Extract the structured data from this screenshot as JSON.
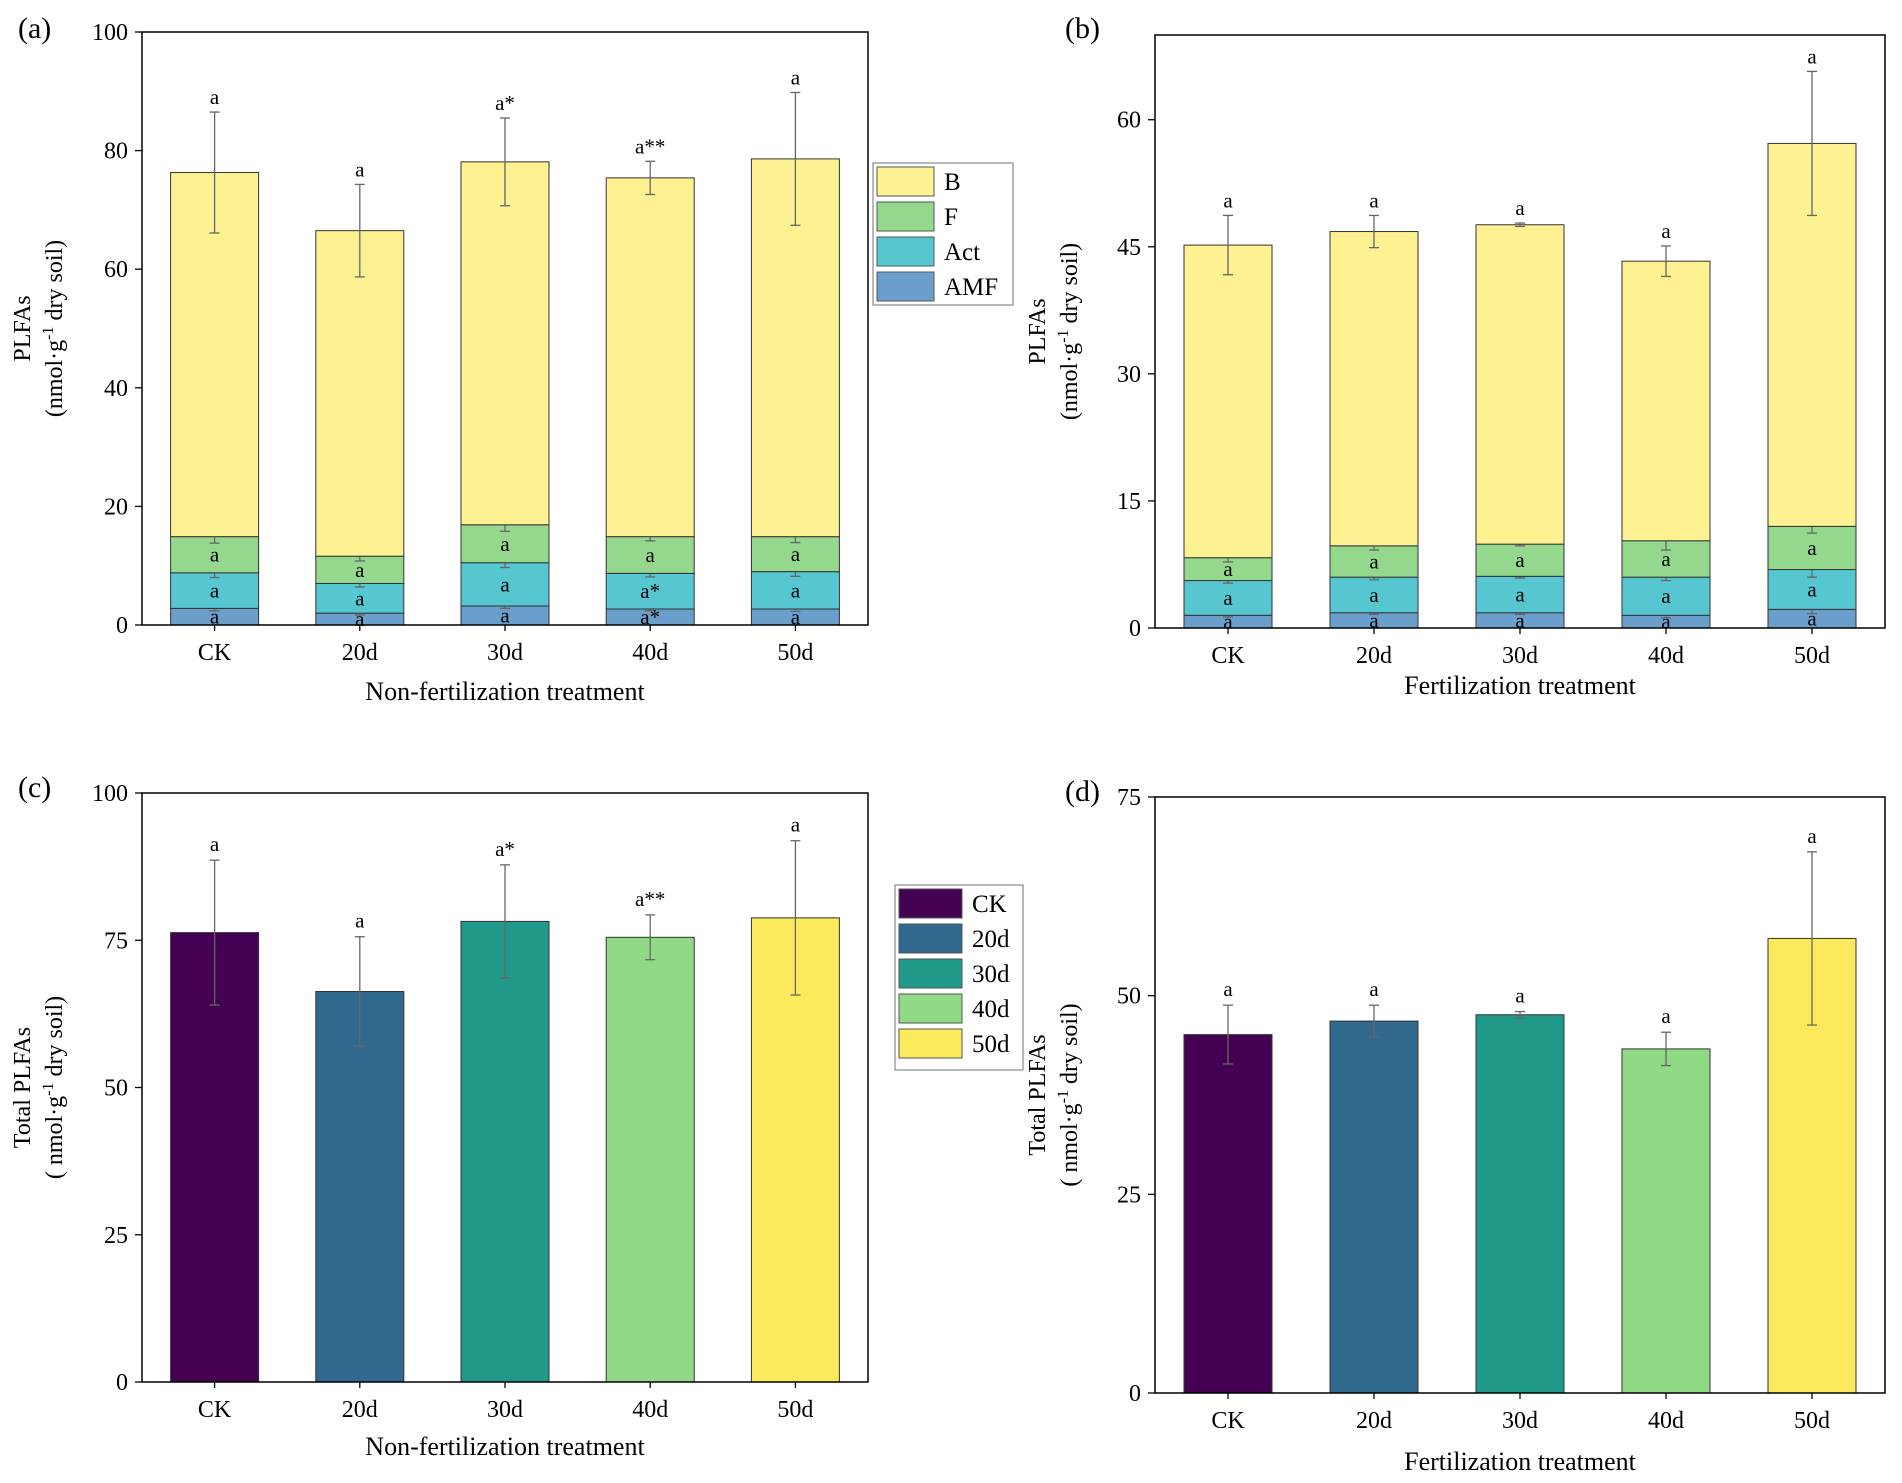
{
  "chart_data": [
    {
      "panel": "(a)",
      "type": "bar",
      "stacked": true,
      "xlabel": "Non-fertilization treatment",
      "ylabel_lines": [
        "PLFAs",
        "(nmol·g",
        "-1",
        " dry soil)"
      ],
      "ylim": [
        0,
        100
      ],
      "yticks": [
        0,
        20,
        40,
        60,
        80,
        100
      ],
      "categories": [
        "CK",
        "20d",
        "30d",
        "40d",
        "50d"
      ],
      "legend": [
        "B",
        "F",
        "Act",
        "AMF"
      ],
      "series": [
        {
          "name": "AMF",
          "color": "#6a9fcb",
          "values": [
            2.8,
            2.0,
            3.2,
            2.7,
            2.7
          ],
          "errors": [
            0.4,
            0.3,
            0.4,
            0.3,
            0.4
          ],
          "sig": [
            "a",
            "a",
            "a",
            "a*",
            "a"
          ]
        },
        {
          "name": "Act",
          "color": "#56c6d1",
          "values": [
            6.0,
            5.0,
            7.3,
            6.0,
            6.3
          ],
          "errors": [
            0.8,
            0.6,
            0.8,
            0.6,
            0.8
          ],
          "sig": [
            "a",
            "a",
            "a",
            "a*",
            "a"
          ]
        },
        {
          "name": "F",
          "color": "#94d88e",
          "values": [
            6.1,
            4.6,
            6.4,
            6.2,
            5.9
          ],
          "errors": [
            1.1,
            0.8,
            1.1,
            0.7,
            1.0
          ],
          "sig": [
            "a",
            "a",
            "a",
            "a",
            "a"
          ]
        },
        {
          "name": "B",
          "color": "#fdf191",
          "values": [
            61.4,
            54.9,
            61.2,
            60.5,
            63.7
          ],
          "errors": [
            10.2,
            7.8,
            7.4,
            2.8,
            11.2
          ],
          "sig": [
            "a",
            "a",
            "a*",
            "a**",
            "a"
          ]
        }
      ]
    },
    {
      "panel": "(b)",
      "type": "bar",
      "stacked": true,
      "xlabel": "Fertilization treatment",
      "ylabel_lines": [
        "PLFAs",
        "(nmol·g",
        "-1",
        " dry soil)"
      ],
      "ylim": [
        0,
        70
      ],
      "yticks": [
        0,
        15,
        30,
        45,
        60
      ],
      "categories": [
        "CK",
        "20d",
        "30d",
        "40d",
        "50d"
      ],
      "series": [
        {
          "name": "AMF",
          "color": "#6a9fcb",
          "values": [
            1.5,
            1.8,
            1.8,
            1.5,
            2.2
          ],
          "errors": [
            0.2,
            0.2,
            0.2,
            0.3,
            0.5
          ],
          "sig": [
            "a",
            "a",
            "a",
            "a",
            "a"
          ]
        },
        {
          "name": "Act",
          "color": "#56c6d1",
          "values": [
            4.1,
            4.2,
            4.3,
            4.5,
            4.7
          ],
          "errors": [
            0.3,
            0.3,
            0.2,
            0.4,
            0.9
          ],
          "sig": [
            "a",
            "a",
            "a",
            "a",
            "a"
          ]
        },
        {
          "name": "F",
          "color": "#94d88e",
          "values": [
            2.7,
            3.7,
            3.8,
            4.3,
            5.1
          ],
          "errors": [
            0.5,
            0.5,
            0.2,
            1.1,
            0.8
          ],
          "sig": [
            "a",
            "a",
            "a",
            "a",
            "a"
          ]
        },
        {
          "name": "B",
          "color": "#fdf191",
          "values": [
            36.9,
            37.1,
            37.7,
            33.0,
            45.2
          ],
          "errors": [
            3.5,
            1.9,
            0.2,
            1.8,
            8.5
          ],
          "sig": [
            "a",
            "a",
            "a",
            "a",
            "a"
          ]
        }
      ]
    },
    {
      "panel": "(c)",
      "type": "bar",
      "xlabel": "Non-fertilization treatment",
      "ylabel_lines": [
        "Total  PLFAs",
        "( nmol·g",
        "-1",
        " dry soil)"
      ],
      "ylim": [
        0,
        100
      ],
      "yticks": [
        0,
        25,
        50,
        75,
        100
      ],
      "categories": [
        "CK",
        "20d",
        "30d",
        "40d",
        "50d"
      ],
      "legend": [
        "CK",
        "20d",
        "30d",
        "40d",
        "50d"
      ],
      "colors": [
        "#440154",
        "#31688e",
        "#21998a",
        "#90d985",
        "#fde95c"
      ],
      "values": [
        76.3,
        66.3,
        78.2,
        75.5,
        78.8
      ],
      "errors": [
        12.3,
        9.3,
        9.6,
        3.8,
        13.1
      ],
      "sig": [
        "a",
        "a",
        "a*",
        "a**",
        "a"
      ]
    },
    {
      "panel": "(d)",
      "type": "bar",
      "xlabel": "Fertilization treatment",
      "ylabel_lines": [
        "Total  PLFAs",
        "( nmol·g",
        "-1",
        " dry soil)"
      ],
      "ylim": [
        0,
        75
      ],
      "yticks": [
        0,
        25,
        50,
        75
      ],
      "categories": [
        "CK",
        "20d",
        "30d",
        "40d",
        "50d"
      ],
      "colors": [
        "#440154",
        "#31688e",
        "#21998a",
        "#90d985",
        "#fde95c"
      ],
      "values": [
        45.1,
        46.8,
        47.6,
        43.3,
        57.2
      ],
      "errors": [
        3.7,
        2.0,
        0.4,
        2.1,
        10.9
      ],
      "sig": [
        "a",
        "a",
        "a",
        "a",
        "a"
      ]
    }
  ]
}
